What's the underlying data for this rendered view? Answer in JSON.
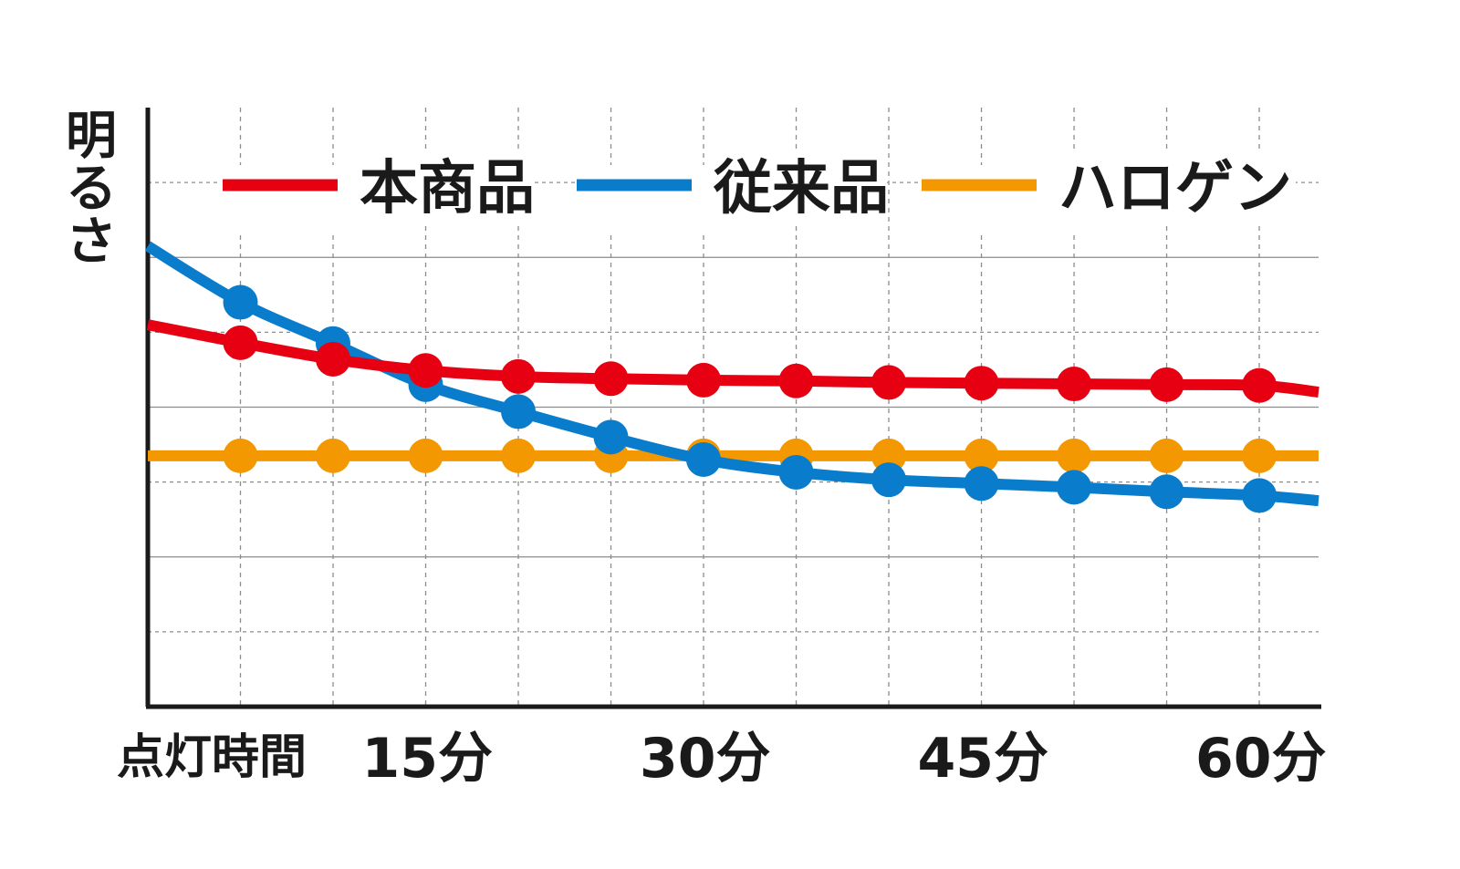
{
  "chart_data": {
    "type": "line",
    "ylabel": "明るさ",
    "xlabel": "点灯時間",
    "x": [
      5,
      10,
      15,
      20,
      25,
      30,
      35,
      40,
      45,
      50,
      55,
      60
    ],
    "x_tick_labels": [
      {
        "x": 15,
        "label": "15分"
      },
      {
        "x": 30,
        "label": "30分"
      },
      {
        "x": 45,
        "label": "45分"
      },
      {
        "x": 60,
        "label": "60分"
      }
    ],
    "xlim": [
      0,
      63.2
    ],
    "ylim": [
      0,
      8
    ],
    "grid": true,
    "legend_position": "top",
    "series": [
      {
        "name": "本商品",
        "color": "#e60012",
        "start": 5.1,
        "end": 4.2,
        "values": [
          4.86,
          4.64,
          4.49,
          4.41,
          4.38,
          4.36,
          4.35,
          4.33,
          4.32,
          4.31,
          4.3,
          4.29
        ]
      },
      {
        "name": "従来品",
        "color": "#0a7ccc",
        "start": 6.15,
        "end": 2.75,
        "values": [
          5.4,
          4.85,
          4.3,
          3.94,
          3.6,
          3.3,
          3.13,
          3.03,
          2.98,
          2.93,
          2.87,
          2.82
        ]
      },
      {
        "name": "ハロゲン",
        "color": "#f39800",
        "start": 3.35,
        "end": 3.35,
        "values": [
          3.35,
          3.35,
          3.35,
          3.35,
          3.35,
          3.35,
          3.35,
          3.35,
          3.35,
          3.35,
          3.35,
          3.35
        ]
      }
    ]
  }
}
